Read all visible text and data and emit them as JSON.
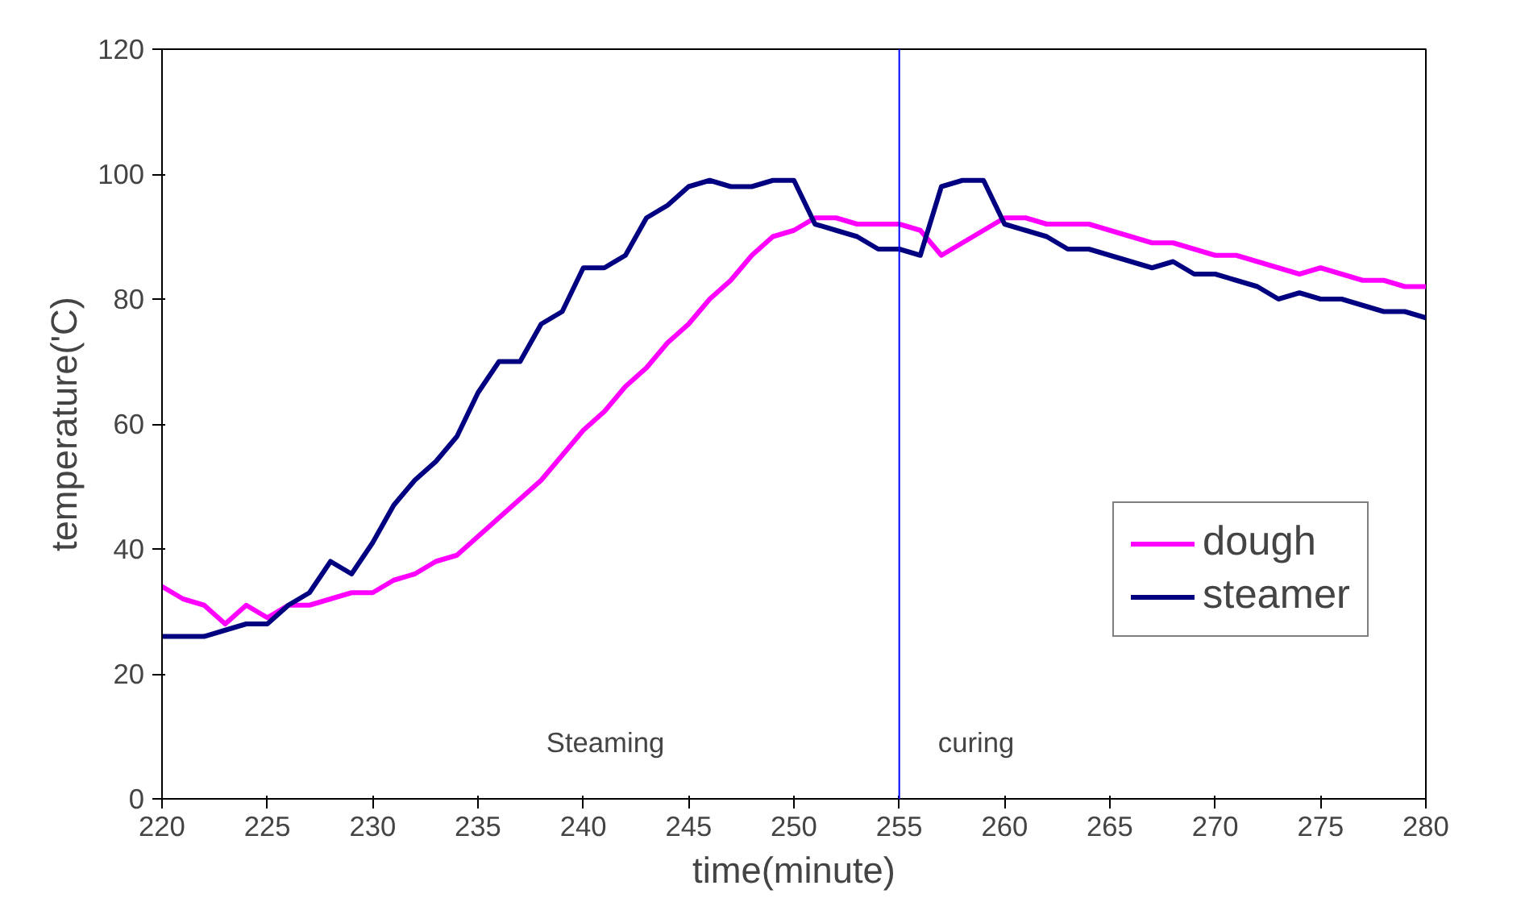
{
  "chart_data": {
    "type": "line",
    "xlabel": "time(minute)",
    "ylabel": "temperature('C)",
    "x": [
      220,
      221,
      222,
      223,
      224,
      225,
      226,
      227,
      228,
      229,
      230,
      231,
      232,
      233,
      234,
      235,
      236,
      237,
      238,
      239,
      240,
      241,
      242,
      243,
      244,
      245,
      246,
      247,
      248,
      249,
      250,
      251,
      252,
      253,
      254,
      255,
      256,
      257,
      258,
      259,
      260,
      261,
      262,
      263,
      264,
      265,
      266,
      267,
      268,
      269,
      270,
      271,
      272,
      273,
      274,
      275,
      276,
      277,
      278,
      279,
      280
    ],
    "series": [
      {
        "name": "dough",
        "color": "#ff00ff",
        "values": [
          34,
          32,
          31,
          28,
          31,
          29,
          31,
          31,
          32,
          33,
          33,
          35,
          36,
          38,
          39,
          42,
          45,
          48,
          51,
          55,
          59,
          62,
          66,
          69,
          73,
          76,
          80,
          83,
          87,
          90,
          91,
          93,
          93,
          92,
          92,
          92,
          91,
          87,
          89,
          91,
          93,
          93,
          92,
          92,
          92,
          91,
          90,
          89,
          89,
          88,
          87,
          87,
          86,
          85,
          84,
          85,
          84,
          83,
          83,
          82,
          82
        ]
      },
      {
        "name": "steamer",
        "color": "#000080",
        "values": [
          26,
          26,
          26,
          27,
          28,
          28,
          31,
          33,
          38,
          36,
          41,
          47,
          51,
          54,
          58,
          65,
          70,
          70,
          76,
          78,
          85,
          85,
          87,
          93,
          95,
          98,
          99,
          98,
          98,
          99,
          99,
          92,
          91,
          90,
          88,
          88,
          87,
          98,
          99,
          99,
          92,
          91,
          90,
          88,
          88,
          87,
          86,
          85,
          86,
          84,
          84,
          83,
          82,
          80,
          81,
          80,
          80,
          79,
          78,
          78,
          77
        ]
      }
    ],
    "xlim": [
      220,
      280
    ],
    "xticks": [
      220,
      225,
      230,
      235,
      240,
      245,
      250,
      255,
      260,
      265,
      270,
      275,
      280
    ],
    "ylim": [
      0,
      120
    ],
    "yticks": [
      0,
      20,
      40,
      60,
      80,
      100,
      120
    ],
    "ref_lines": [
      {
        "axis": "x",
        "value": 255,
        "color": "#0000ff"
      }
    ],
    "annotations": [
      "Steaming",
      "curing"
    ],
    "grid": false,
    "legend": "right",
    "marker": "none",
    "line_style": "solid"
  }
}
